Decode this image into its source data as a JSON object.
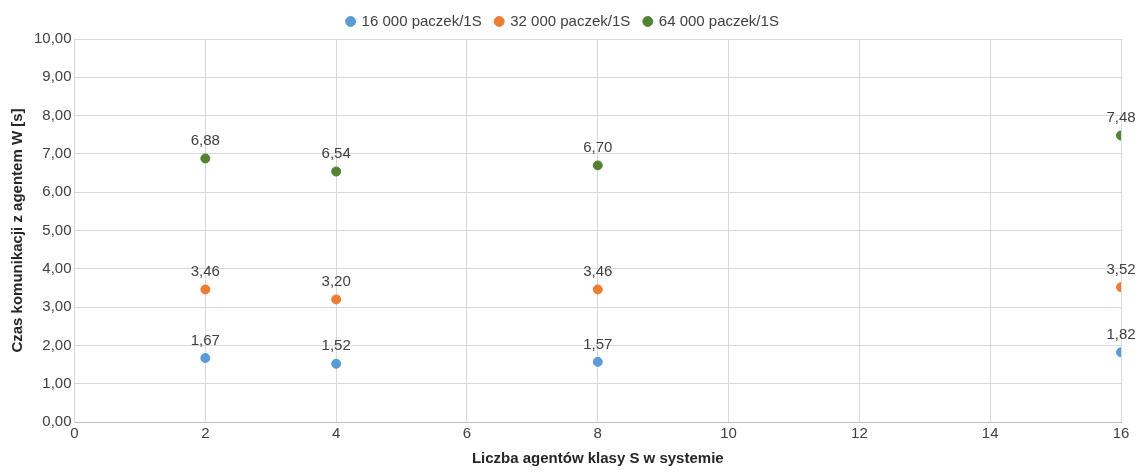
{
  "chart_data": {
    "type": "scatter",
    "xlabel": "Liczba agentów klasy S w systemie",
    "ylabel": "Czas komunikacji z agentem W [s]",
    "x": [
      2,
      4,
      8,
      16
    ],
    "series": [
      {
        "name": "16 000 paczek/1S",
        "color": "#5b9bd5",
        "values": [
          1.67,
          1.52,
          1.57,
          1.82
        ],
        "value_labels": [
          "1,67",
          "1,52",
          "1,57",
          "1,82"
        ]
      },
      {
        "name": "32 000 paczek/1S",
        "color": "#ed7d31",
        "values": [
          3.46,
          3.2,
          3.46,
          3.52
        ],
        "value_labels": [
          "3,46",
          "3,20",
          "3,46",
          "3,52"
        ]
      },
      {
        "name": "64 000 paczek/1S",
        "color": "#548235",
        "values": [
          6.88,
          6.54,
          6.7,
          7.48
        ],
        "value_labels": [
          "6,88",
          "6,54",
          "6,70",
          "7,48"
        ]
      }
    ],
    "xlim": [
      0,
      16
    ],
    "xticks": [
      0,
      2,
      4,
      6,
      8,
      10,
      12,
      14,
      16
    ],
    "ylim": [
      0,
      10
    ],
    "yticks": [
      {
        "value": 0,
        "label": "0,00"
      },
      {
        "value": 1,
        "label": "1,00"
      },
      {
        "value": 2,
        "label": "2,00"
      },
      {
        "value": 3,
        "label": "3,00"
      },
      {
        "value": 4,
        "label": "4,00"
      },
      {
        "value": 5,
        "label": "5,00"
      },
      {
        "value": 6,
        "label": "6,00"
      },
      {
        "value": 7,
        "label": "7,00"
      },
      {
        "value": 8,
        "label": "8,00"
      },
      {
        "value": 9,
        "label": "9,00"
      },
      {
        "value": 10,
        "label": "10,00"
      }
    ],
    "grid": true,
    "legend": "top",
    "marker": "circle"
  }
}
